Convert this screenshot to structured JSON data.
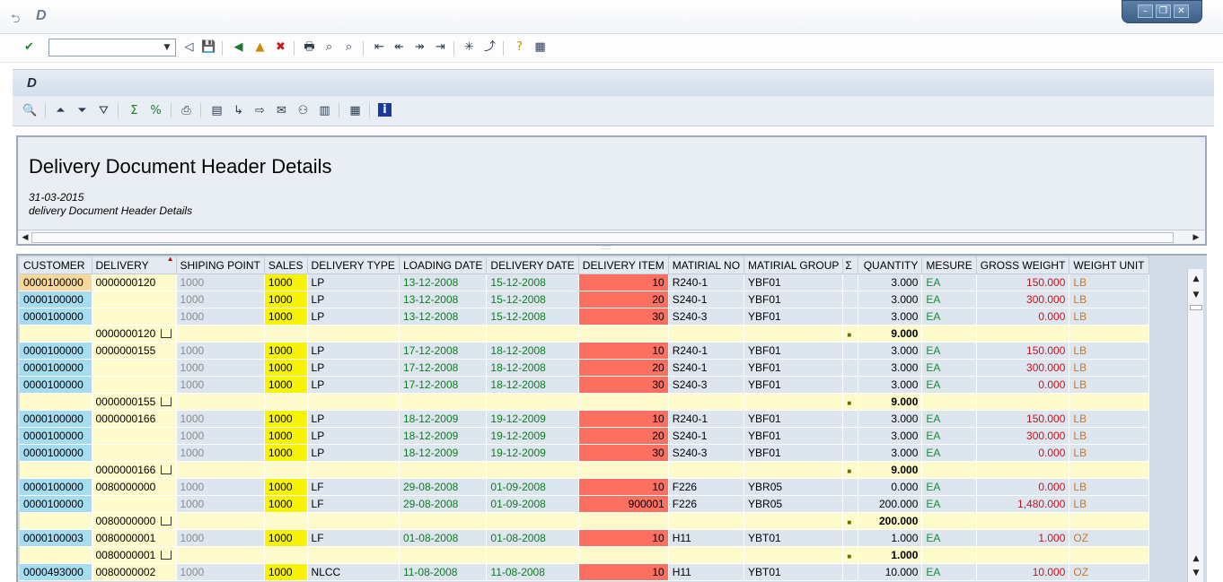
{
  "window": {
    "title": "D"
  },
  "toolbar": {
    "command_field_value": ""
  },
  "app": {
    "title": "D"
  },
  "report": {
    "heading": "Delivery Document Header Details",
    "date": "31-03-2015",
    "subtitle": "delivery Document Header Details"
  },
  "grid": {
    "columns": [
      "CUSTOMER",
      "DELIVERY",
      "SHIPING POINT",
      "SALES",
      "DELIVERY TYPE",
      "LOADING DATE",
      "DELIVERY DATE",
      "DELIVERY ITEM",
      "MATIRIAL NO",
      "MATIRIAL GROUP",
      "Σ",
      "QUANTITY",
      "MESURE",
      "GROSS WEIGHT",
      "WEIGHT UNIT"
    ],
    "groups": [
      {
        "delivery": "0000000120",
        "rows": [
          {
            "customer": "0000100000",
            "ship": "1000",
            "sales": "1000",
            "type": "LP",
            "load": "13-12-2008",
            "deliv_date": "15-12-2008",
            "item": "10",
            "mat": "R240-1",
            "group": "YBF01",
            "qty": "3.000",
            "uom": "EA",
            "gross": "150.000",
            "wunit": "LB"
          },
          {
            "customer": "0000100000",
            "ship": "1000",
            "sales": "1000",
            "type": "LP",
            "load": "13-12-2008",
            "deliv_date": "15-12-2008",
            "item": "20",
            "mat": "S240-1",
            "group": "YBF01",
            "qty": "3.000",
            "uom": "EA",
            "gross": "300.000",
            "wunit": "LB"
          },
          {
            "customer": "0000100000",
            "ship": "1000",
            "sales": "1000",
            "type": "LP",
            "load": "13-12-2008",
            "deliv_date": "15-12-2008",
            "item": "30",
            "mat": "S240-3",
            "group": "YBF01",
            "qty": "3.000",
            "uom": "EA",
            "gross": "0.000",
            "wunit": "LB"
          }
        ],
        "subtotal": "9.000"
      },
      {
        "delivery": "0000000155",
        "rows": [
          {
            "customer": "0000100000",
            "ship": "1000",
            "sales": "1000",
            "type": "LP",
            "load": "17-12-2008",
            "deliv_date": "18-12-2008",
            "item": "10",
            "mat": "R240-1",
            "group": "YBF01",
            "qty": "3.000",
            "uom": "EA",
            "gross": "150.000",
            "wunit": "LB"
          },
          {
            "customer": "0000100000",
            "ship": "1000",
            "sales": "1000",
            "type": "LP",
            "load": "17-12-2008",
            "deliv_date": "18-12-2008",
            "item": "20",
            "mat": "S240-1",
            "group": "YBF01",
            "qty": "3.000",
            "uom": "EA",
            "gross": "300.000",
            "wunit": "LB"
          },
          {
            "customer": "0000100000",
            "ship": "1000",
            "sales": "1000",
            "type": "LP",
            "load": "17-12-2008",
            "deliv_date": "18-12-2008",
            "item": "30",
            "mat": "S240-3",
            "group": "YBF01",
            "qty": "3.000",
            "uom": "EA",
            "gross": "0.000",
            "wunit": "LB"
          }
        ],
        "subtotal": "9.000"
      },
      {
        "delivery": "0000000166",
        "rows": [
          {
            "customer": "0000100000",
            "ship": "1000",
            "sales": "1000",
            "type": "LP",
            "load": "18-12-2009",
            "deliv_date": "19-12-2009",
            "item": "10",
            "mat": "R240-1",
            "group": "YBF01",
            "qty": "3.000",
            "uom": "EA",
            "gross": "150.000",
            "wunit": "LB"
          },
          {
            "customer": "0000100000",
            "ship": "1000",
            "sales": "1000",
            "type": "LP",
            "load": "18-12-2009",
            "deliv_date": "19-12-2009",
            "item": "20",
            "mat": "S240-1",
            "group": "YBF01",
            "qty": "3.000",
            "uom": "EA",
            "gross": "300.000",
            "wunit": "LB"
          },
          {
            "customer": "0000100000",
            "ship": "1000",
            "sales": "1000",
            "type": "LP",
            "load": "18-12-2009",
            "deliv_date": "19-12-2009",
            "item": "30",
            "mat": "S240-3",
            "group": "YBF01",
            "qty": "3.000",
            "uom": "EA",
            "gross": "0.000",
            "wunit": "LB"
          }
        ],
        "subtotal": "9.000"
      },
      {
        "delivery": "0080000000",
        "rows": [
          {
            "customer": "0000100000",
            "ship": "1000",
            "sales": "1000",
            "type": "LF",
            "load": "29-08-2008",
            "deliv_date": "01-09-2008",
            "item": "10",
            "mat": "F226",
            "group": "YBR05",
            "qty": "0.000",
            "uom": "EA",
            "gross": "0.000",
            "wunit": "LB"
          },
          {
            "customer": "0000100000",
            "ship": "1000",
            "sales": "1000",
            "type": "LF",
            "load": "29-08-2008",
            "deliv_date": "01-09-2008",
            "item": "900001",
            "mat": "F226",
            "group": "YBR05",
            "qty": "200.000",
            "uom": "EA",
            "gross": "1,480.000",
            "wunit": "LB"
          }
        ],
        "subtotal": "200.000"
      },
      {
        "delivery": "0080000001",
        "rows": [
          {
            "customer": "0000100003",
            "ship": "1000",
            "sales": "1000",
            "type": "LF",
            "load": "01-08-2008",
            "deliv_date": "01-08-2008",
            "item": "10",
            "mat": "H11",
            "group": "YBT01",
            "qty": "1.000",
            "uom": "EA",
            "gross": "1.000",
            "wunit": "OZ"
          }
        ],
        "subtotal": "1.000"
      },
      {
        "delivery": "0080000002",
        "rows": [
          {
            "customer": "0000493000",
            "ship": "1000",
            "sales": "1000",
            "type": "NLCC",
            "load": "11-08-2008",
            "deliv_date": "11-08-2008",
            "item": "10",
            "mat": "H11",
            "group": "YBT01",
            "qty": "10.000",
            "uom": "EA",
            "gross": "10.000",
            "wunit": "OZ"
          }
        ],
        "subtotal": ""
      }
    ]
  }
}
